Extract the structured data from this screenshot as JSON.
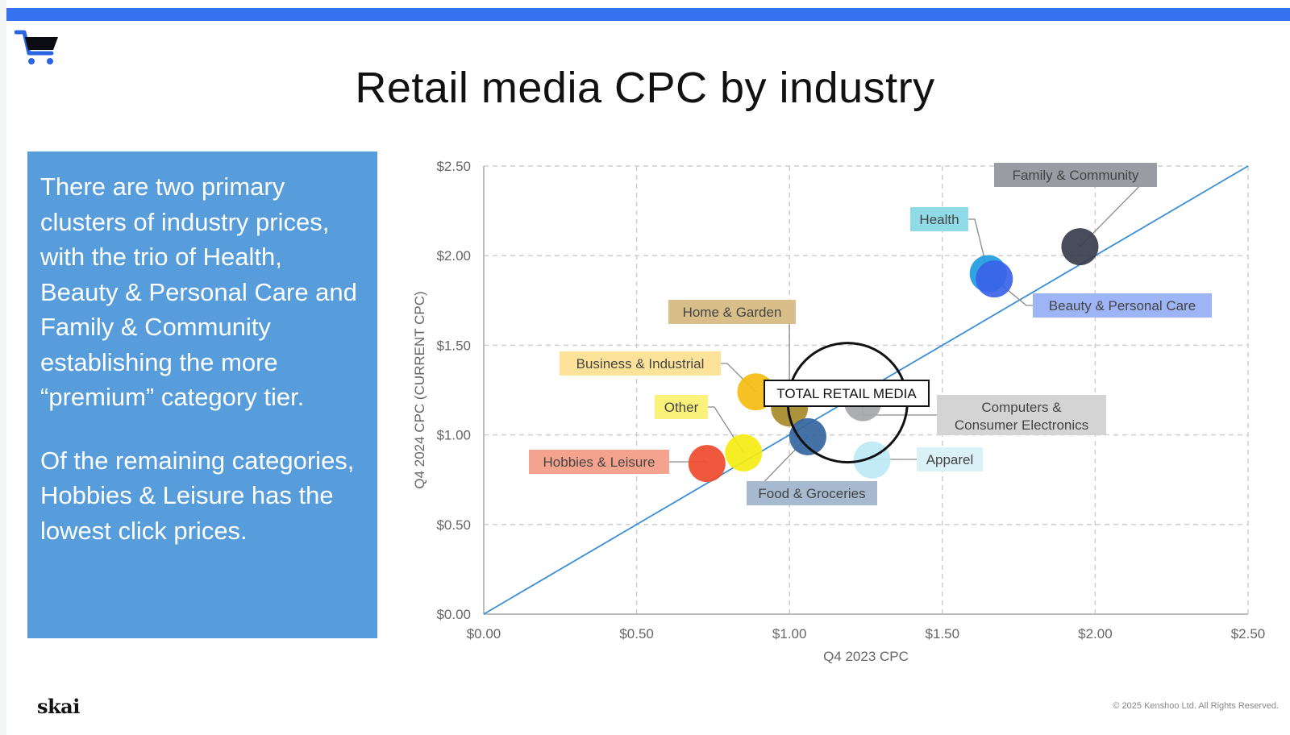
{
  "page": {
    "title": "Retail media CPC by industry",
    "accent_color": "#3572f0",
    "logo_icon": "shopping-cart-icon",
    "brand": "skai",
    "copyright": "© 2025 Kenshoo Ltd. All Rights Reserved."
  },
  "callout": {
    "background": "#579ddb",
    "paragraph_1": "There are two primary clusters of industry prices, with the trio of Health, Beauty & Personal Care and Family & Community establishing the more “premium” category tier.",
    "paragraph_2": "Of the remaining categories, Hobbies & Leisure has the lowest click prices."
  },
  "chart_data": {
    "type": "scatter",
    "title": "",
    "xlabel": "Q4 2023 CPC",
    "ylabel": "Q4 2024 CPC (CURRENT CPC)",
    "xlim": [
      0,
      2.5
    ],
    "ylim": [
      0,
      2.5
    ],
    "xticks": [
      "$0.00",
      "$0.50",
      "$1.00",
      "$1.50",
      "$2.00",
      "$2.50"
    ],
    "yticks": [
      "$0.00",
      "$0.50",
      "$1.00",
      "$1.50",
      "$2.00",
      "$2.50"
    ],
    "grid": true,
    "reference_line": {
      "from": [
        0,
        0
      ],
      "to": [
        2.5,
        2.5
      ],
      "color": "#3b8fd6"
    },
    "series": [
      {
        "label": "Family & Community",
        "x": 1.95,
        "y": 2.05,
        "color": "#3a3d4c",
        "label_bg": "#9a9ba3"
      },
      {
        "label": "Health",
        "x": 1.65,
        "y": 1.9,
        "color": "#1e9ce0",
        "label_bg": "#8fdbe8"
      },
      {
        "label": "Beauty & Personal Care",
        "x": 1.67,
        "y": 1.87,
        "color": "#3a63e8",
        "label_bg": "#9db5f5"
      },
      {
        "label": "Home & Garden",
        "x": 1.0,
        "y": 1.15,
        "color": "#a88a2a",
        "label_bg": "#d8bf8a"
      },
      {
        "label": "Business & Industrial",
        "x": 0.89,
        "y": 1.24,
        "color": "#f5bd10",
        "label_bg": "#fde39a"
      },
      {
        "label": "Other",
        "x": 0.85,
        "y": 0.9,
        "color": "#f6ec12",
        "label_bg": "#faf27a"
      },
      {
        "label": "Hobbies & Leisure",
        "x": 0.73,
        "y": 0.84,
        "color": "#ef4a2c",
        "label_bg": "#f4a48e"
      },
      {
        "label": "Food & Groceries",
        "x": 1.06,
        "y": 0.99,
        "color": "#34669e",
        "label_bg": "#a6b9ce"
      },
      {
        "label": "Computers & Consumer Electronics",
        "x": 1.24,
        "y": 1.18,
        "color": "#a4a6a9",
        "label_bg": "#d4d4d4"
      },
      {
        "label": "Apparel",
        "x": 1.27,
        "y": 0.86,
        "color": "#bde9f6",
        "label_bg": "#dbf1f8"
      },
      {
        "label": "TOTAL RETAIL MEDIA",
        "x": 1.19,
        "y": 1.18,
        "color": "#111111",
        "label_bg": "#ffffff",
        "outline": true
      }
    ]
  }
}
